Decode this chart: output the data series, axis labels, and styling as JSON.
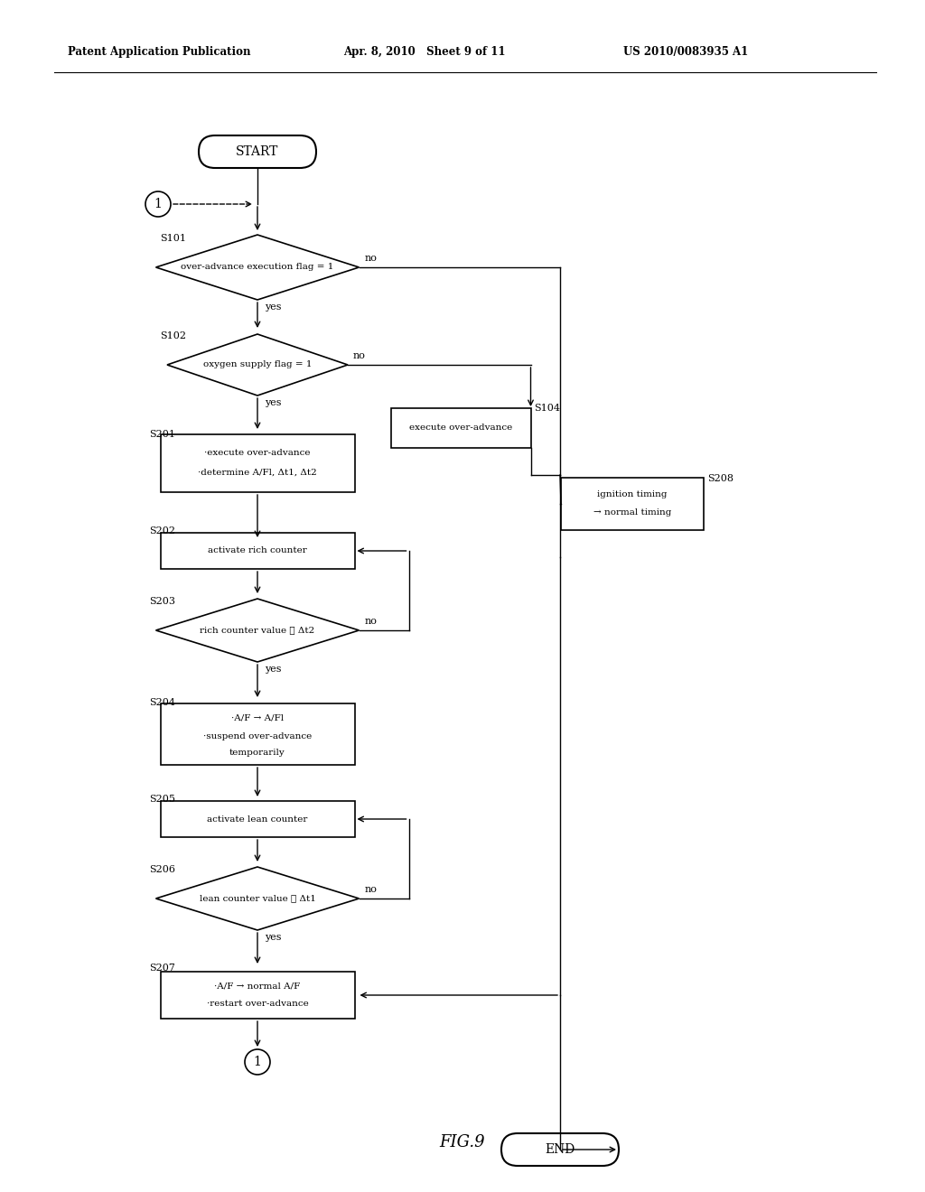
{
  "title_left": "Patent Application Publication",
  "title_center": "Apr. 8, 2010   Sheet 9 of 11",
  "title_right": "US 2010/0083935 A1",
  "fig_label": "FIG.9",
  "background_color": "#ffffff",
  "line_color": "#000000",
  "text_color": "#000000",
  "font_size": 9,
  "header_font_size": 9
}
